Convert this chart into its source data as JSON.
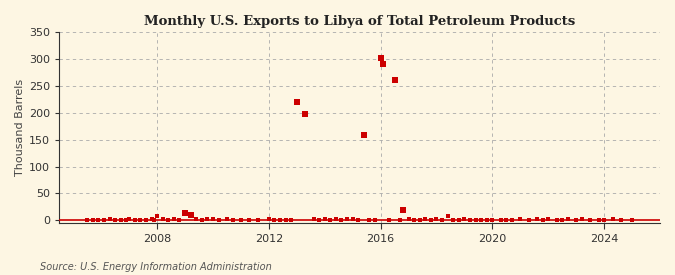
{
  "title": "Monthly U.S. Exports to Libya of Total Petroleum Products",
  "ylabel": "Thousand Barrels",
  "source": "Source: U.S. Energy Information Administration",
  "background_color": "#fdf6e3",
  "plot_bg_color": "#fdf6e3",
  "marker_color": "#cc0000",
  "grid_color": "#aaaaaa",
  "axis_color": "#333333",
  "xlim_start": 2004.5,
  "xlim_end": 2026.0,
  "ylim_min": -5,
  "ylim_max": 350,
  "yticks": [
    0,
    50,
    100,
    150,
    200,
    250,
    300,
    350
  ],
  "xticks": [
    2008,
    2012,
    2016,
    2020,
    2024
  ],
  "data": [
    [
      2005.5,
      1
    ],
    [
      2005.7,
      1
    ],
    [
      2005.9,
      1
    ],
    [
      2006.1,
      1
    ],
    [
      2006.3,
      2
    ],
    [
      2006.5,
      1
    ],
    [
      2006.7,
      1
    ],
    [
      2006.9,
      1
    ],
    [
      2007.0,
      2
    ],
    [
      2007.2,
      1
    ],
    [
      2007.4,
      1
    ],
    [
      2007.6,
      1
    ],
    [
      2007.8,
      2
    ],
    [
      2007.9,
      1
    ],
    [
      2008.0,
      9
    ],
    [
      2008.2,
      2
    ],
    [
      2008.4,
      1
    ],
    [
      2008.6,
      2
    ],
    [
      2008.8,
      1
    ],
    [
      2009.0,
      13
    ],
    [
      2009.2,
      10
    ],
    [
      2009.4,
      2
    ],
    [
      2009.6,
      1
    ],
    [
      2009.8,
      2
    ],
    [
      2010.0,
      3
    ],
    [
      2010.2,
      1
    ],
    [
      2010.5,
      2
    ],
    [
      2010.7,
      1
    ],
    [
      2011.0,
      1
    ],
    [
      2011.3,
      1
    ],
    [
      2011.6,
      1
    ],
    [
      2012.0,
      2
    ],
    [
      2012.2,
      1
    ],
    [
      2012.4,
      1
    ],
    [
      2012.6,
      1
    ],
    [
      2012.8,
      1
    ],
    [
      2013.0,
      220
    ],
    [
      2013.3,
      197
    ],
    [
      2013.6,
      2
    ],
    [
      2013.8,
      1
    ],
    [
      2014.0,
      2
    ],
    [
      2014.2,
      1
    ],
    [
      2014.4,
      2
    ],
    [
      2014.6,
      1
    ],
    [
      2014.8,
      2
    ],
    [
      2015.0,
      2
    ],
    [
      2015.2,
      1
    ],
    [
      2015.4,
      158
    ],
    [
      2015.6,
      1
    ],
    [
      2015.8,
      1
    ],
    [
      2016.0,
      301
    ],
    [
      2016.1,
      290
    ],
    [
      2016.3,
      1
    ],
    [
      2016.5,
      261
    ],
    [
      2016.7,
      1
    ],
    [
      2016.8,
      20
    ],
    [
      2017.0,
      2
    ],
    [
      2017.2,
      1
    ],
    [
      2017.4,
      1
    ],
    [
      2017.6,
      2
    ],
    [
      2017.8,
      1
    ],
    [
      2018.0,
      2
    ],
    [
      2018.2,
      1
    ],
    [
      2018.4,
      8
    ],
    [
      2018.6,
      1
    ],
    [
      2018.8,
      1
    ],
    [
      2019.0,
      2
    ],
    [
      2019.2,
      1
    ],
    [
      2019.4,
      1
    ],
    [
      2019.6,
      1
    ],
    [
      2019.8,
      1
    ],
    [
      2020.0,
      1
    ],
    [
      2020.3,
      1
    ],
    [
      2020.5,
      1
    ],
    [
      2020.7,
      1
    ],
    [
      2021.0,
      2
    ],
    [
      2021.3,
      1
    ],
    [
      2021.6,
      2
    ],
    [
      2021.8,
      1
    ],
    [
      2022.0,
      2
    ],
    [
      2022.3,
      1
    ],
    [
      2022.5,
      1
    ],
    [
      2022.7,
      2
    ],
    [
      2023.0,
      1
    ],
    [
      2023.2,
      2
    ],
    [
      2023.5,
      1
    ],
    [
      2023.8,
      1
    ],
    [
      2024.0,
      1
    ],
    [
      2024.3,
      3
    ],
    [
      2024.6,
      1
    ],
    [
      2025.0,
      1
    ]
  ]
}
